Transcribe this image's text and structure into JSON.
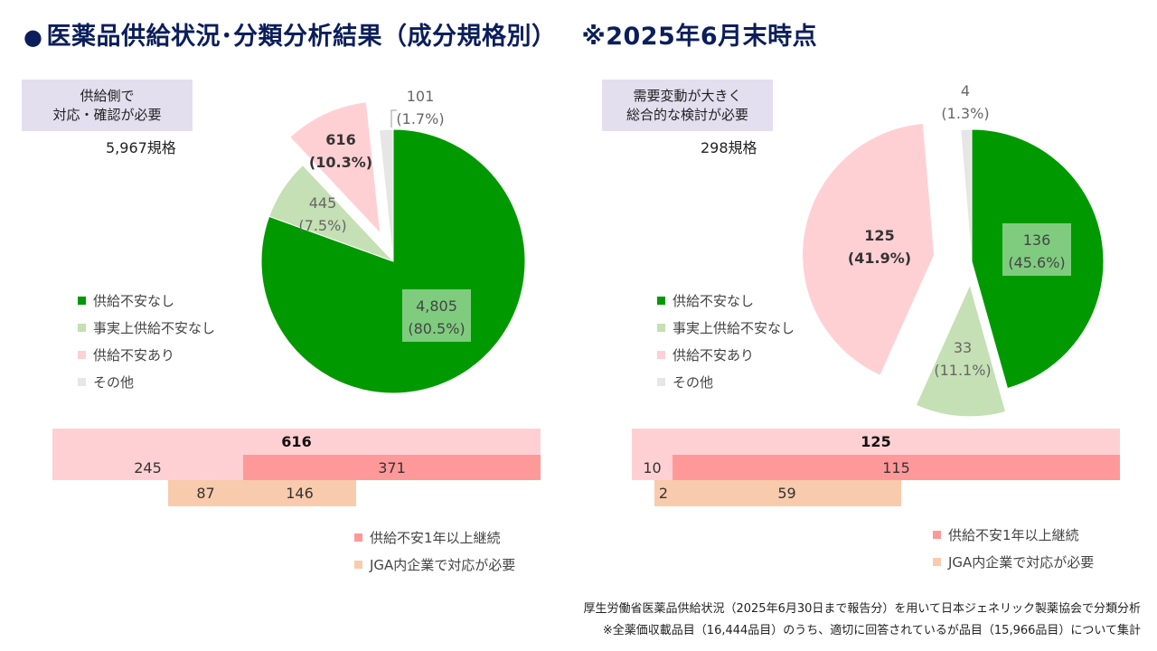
{
  "header": {
    "title": "医薬品供給状況･分類分析結果（成分規格別）",
    "note": "※2025年6月末時点"
  },
  "colors": {
    "no_concern": "#009900",
    "practically_no_concern": "#c5e0b4",
    "concern": "#ffd0d3",
    "other": "#e6e6e6",
    "over_1yr": "#ff9999",
    "jga": "#f8cbad"
  },
  "panels": [
    {
      "tag": "供給側で\n対応・確認が必要",
      "count": "5,967規格",
      "chart_data": {
        "type": "pie",
        "slices": [
          {
            "label": "供給不安なし",
            "value": 4805,
            "pct": "80.5%",
            "value_text": "4,805",
            "pct_text": "(80.5%)"
          },
          {
            "label": "事実上供給不安なし",
            "value": 445,
            "pct": "7.5%",
            "value_text": "445",
            "pct_text": "(7.5%)"
          },
          {
            "label": "供給不安あり",
            "value": 616,
            "pct": "10.3%",
            "value_text": "616",
            "pct_text": "(10.3%)"
          },
          {
            "label": "その他",
            "value": 101,
            "pct": "1.7%",
            "value_text": "101",
            "pct_text": "(1.7%)"
          }
        ]
      },
      "breakdown": {
        "total": "616",
        "row1": [
          "245",
          "371"
        ],
        "row2": [
          "87",
          "146"
        ]
      }
    },
    {
      "tag": "需要変動が大きく\n総合的な検討が必要",
      "count": "298規格",
      "chart_data": {
        "type": "pie",
        "slices": [
          {
            "label": "供給不安なし",
            "value": 136,
            "pct": "45.6%",
            "value_text": "136",
            "pct_text": "(45.6%)"
          },
          {
            "label": "事実上供給不安なし",
            "value": 33,
            "pct": "11.1%",
            "value_text": "33",
            "pct_text": "(11.1%)"
          },
          {
            "label": "供給不安あり",
            "value": 125,
            "pct": "41.9%",
            "value_text": "125",
            "pct_text": "(41.9%)"
          },
          {
            "label": "その他",
            "value": 4,
            "pct": "1.3%",
            "value_text": "4",
            "pct_text": "(1.3%)"
          }
        ]
      },
      "breakdown": {
        "total": "125",
        "row1": [
          "10",
          "115"
        ],
        "row2": [
          "2",
          "59"
        ]
      }
    }
  ],
  "legend": [
    "供給不安なし",
    "事実上供給不安なし",
    "供給不安あり",
    "その他"
  ],
  "bar_legend": [
    "供給不安1年以上継続",
    "JGA内企業で対応が必要"
  ],
  "footer": {
    "line1": "厚生労働省医薬品供給状況（2025年6月30日まで報告分）を用いて日本ジェネリック製薬協会で分類分析",
    "line2": "※全薬価収載品目（16,444品目）のうち、適切に回答されているが品目（15,966品目）について集計"
  }
}
